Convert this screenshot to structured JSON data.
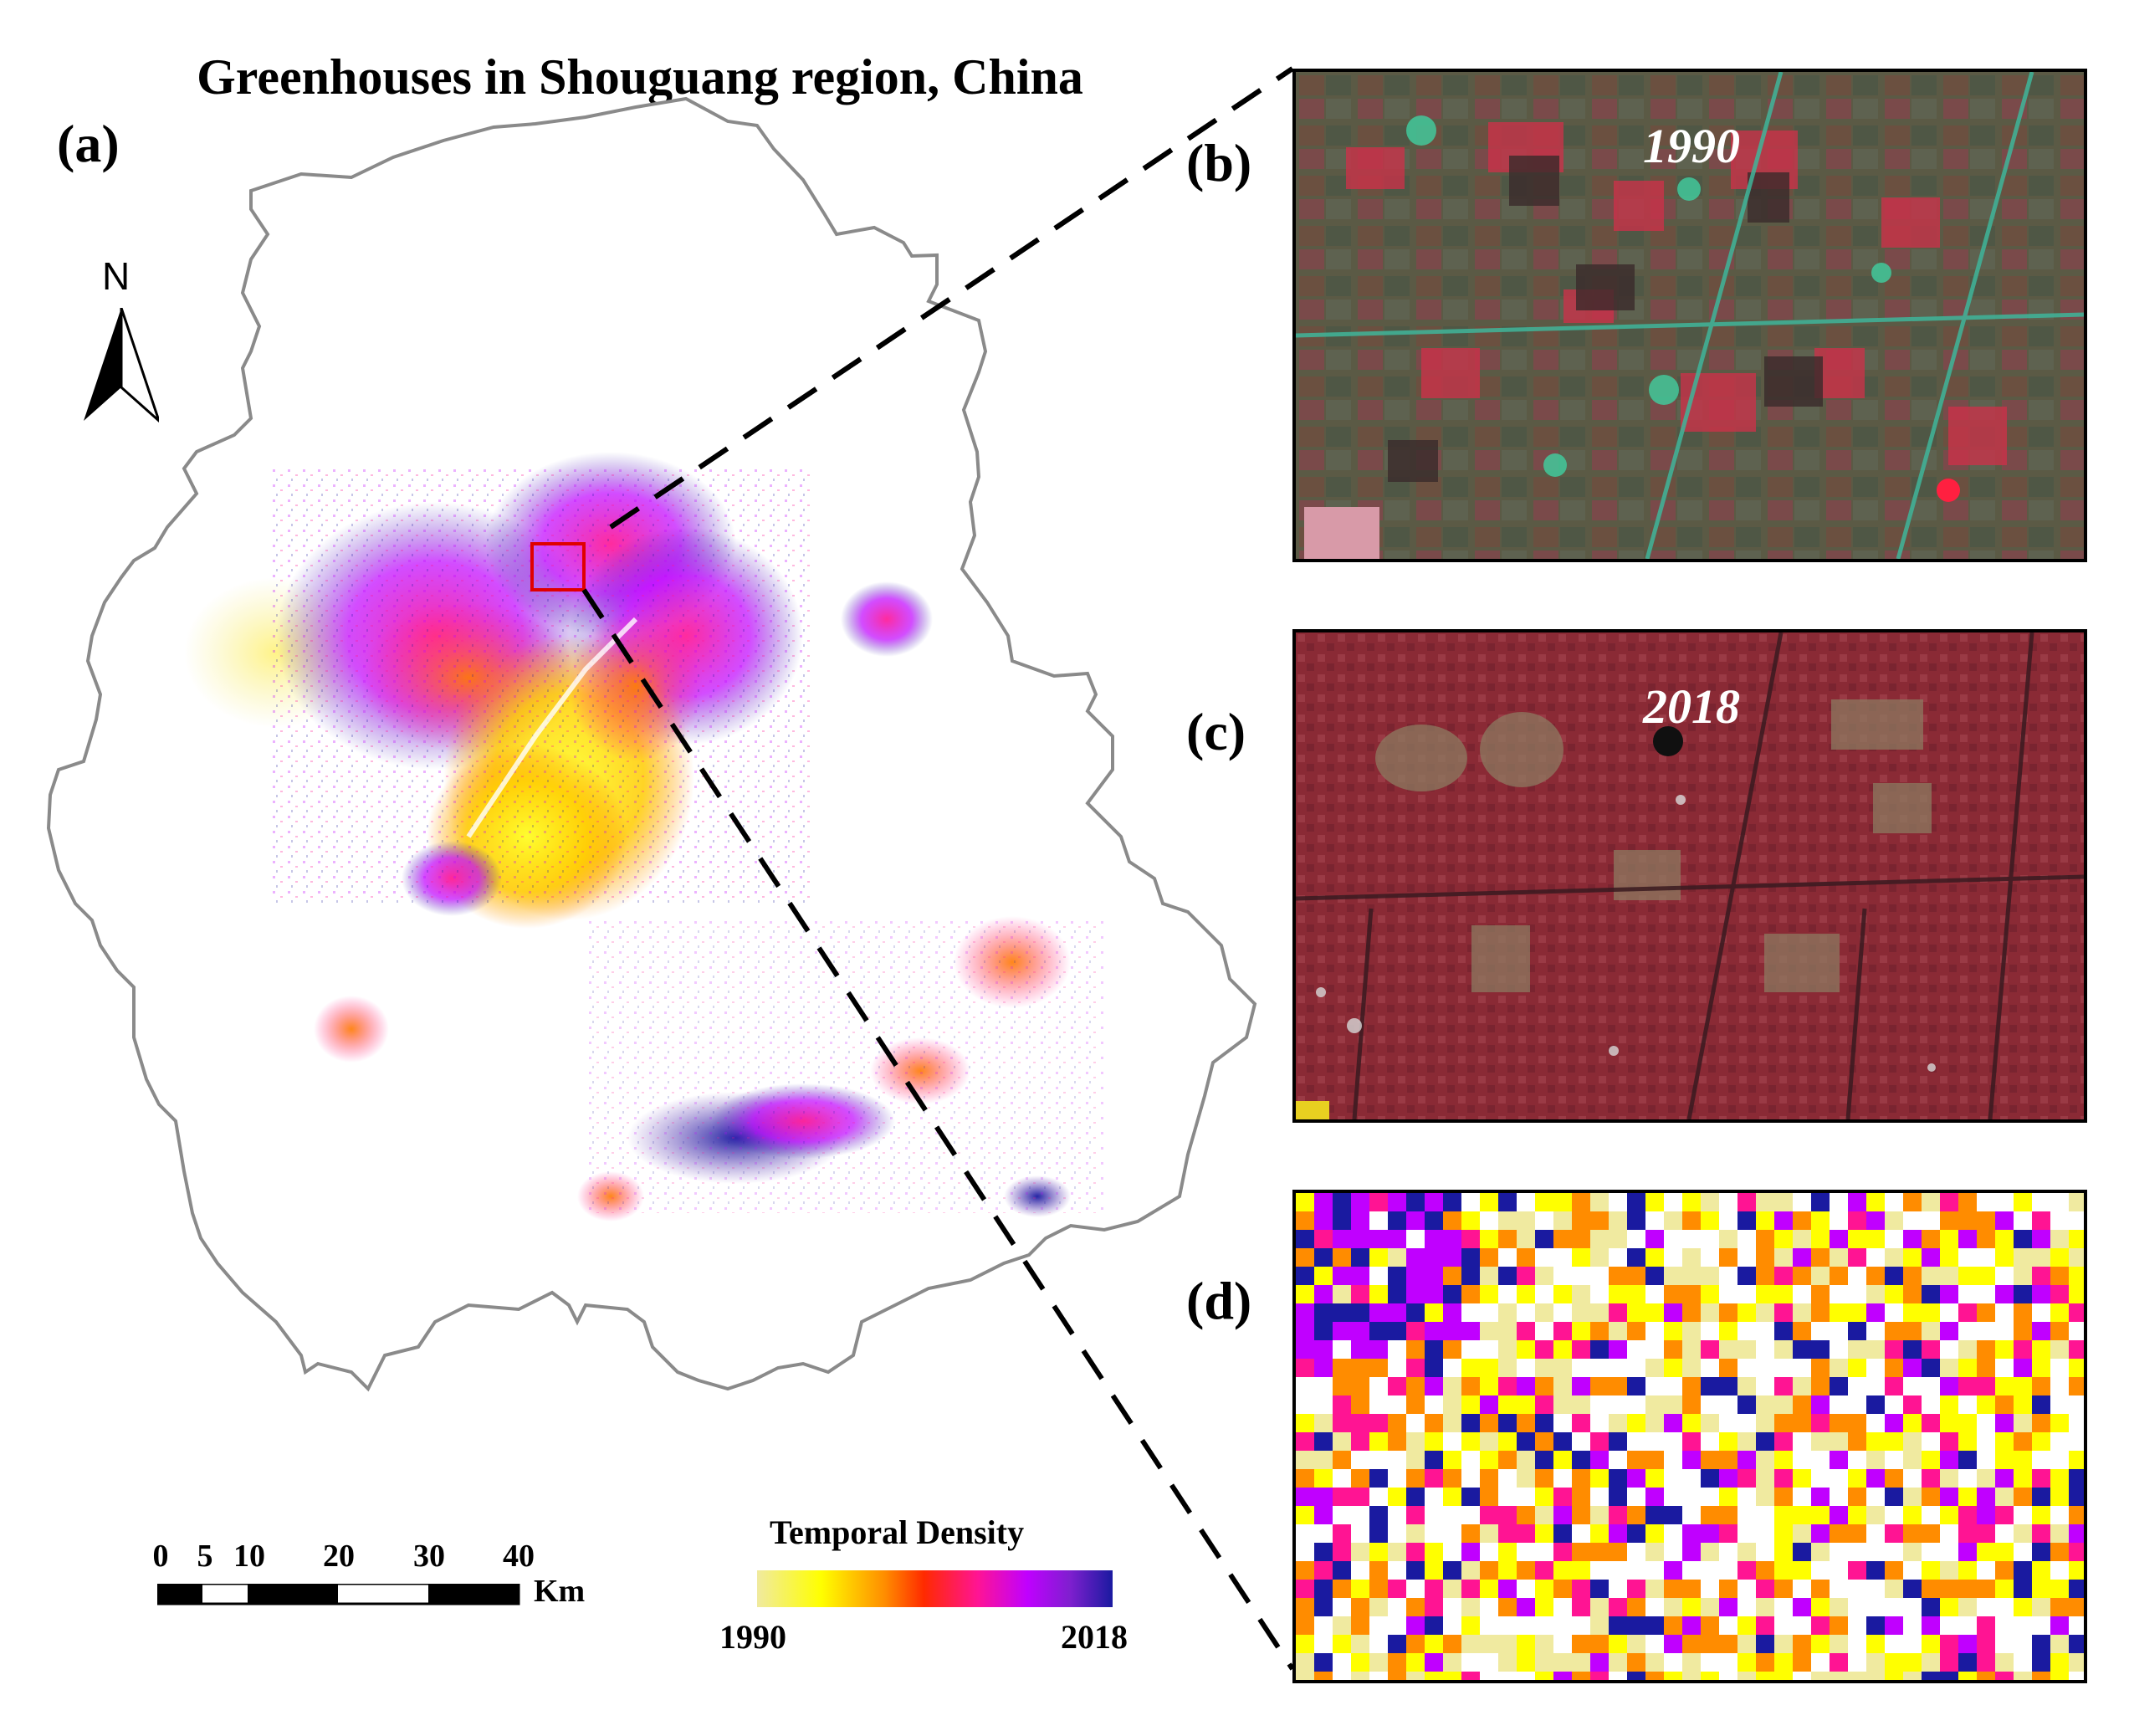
{
  "figure": {
    "title": "Greenhouses in Shouguang region, China"
  },
  "panels": {
    "a": "(a)",
    "b": "(b)",
    "c": "(c)",
    "d": "(d)"
  },
  "north_arrow": {
    "label": "N",
    "icon": "north-arrow-icon"
  },
  "scale_bar": {
    "ticks": [
      "0",
      "5",
      "10",
      "20",
      "30",
      "40"
    ],
    "unit": "Km"
  },
  "legend": {
    "title": "Temporal Density",
    "min_label": "1990",
    "max_label": "2018",
    "colors": [
      "#f0eaa0",
      "#ffff00",
      "#ff8c00",
      "#ff2a00",
      "#ff1493",
      "#c000ff",
      "#7f1fcf",
      "#1a1aa0"
    ]
  },
  "insets": {
    "b": {
      "year": "1990"
    },
    "c": {
      "year": "2018"
    }
  },
  "colors": {
    "boundary": "#8a8a8a",
    "study_area_box": "#e00000",
    "leader_lines": "#000000"
  }
}
